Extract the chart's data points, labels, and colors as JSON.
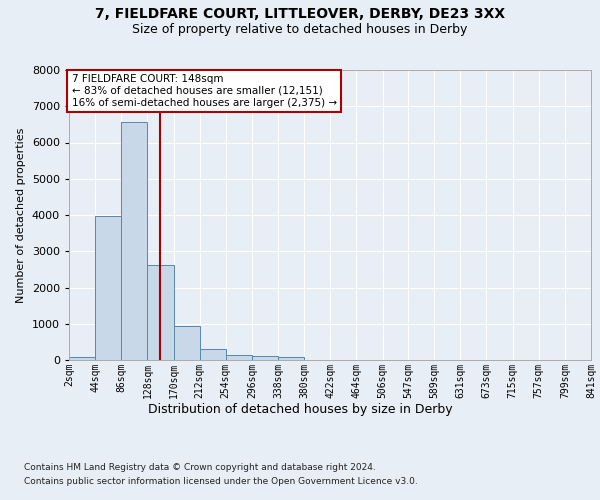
{
  "title_line1": "7, FIELDFARE COURT, LITTLEOVER, DERBY, DE23 3XX",
  "title_line2": "Size of property relative to detached houses in Derby",
  "xlabel": "Distribution of detached houses by size in Derby",
  "ylabel": "Number of detached properties",
  "bar_edges": [
    2,
    44,
    86,
    128,
    170,
    212,
    254,
    296,
    338,
    380,
    422,
    464,
    506,
    547,
    589,
    631,
    673,
    715,
    757,
    799,
    841
  ],
  "bar_heights": [
    75,
    3970,
    6560,
    2620,
    950,
    310,
    130,
    110,
    90,
    0,
    0,
    0,
    0,
    0,
    0,
    0,
    0,
    0,
    0,
    0
  ],
  "bar_color": "#c8d8e8",
  "bar_edgecolor": "#5588aa",
  "vline_x": 148,
  "vline_color": "#aa0000",
  "ylim": [
    0,
    8000
  ],
  "annotation_text": "7 FIELDFARE COURT: 148sqm\n← 83% of detached houses are smaller (12,151)\n16% of semi-detached houses are larger (2,375) →",
  "annotation_box_edgecolor": "#aa0000",
  "annotation_box_facecolor": "#ffffff",
  "footnote1": "Contains HM Land Registry data © Crown copyright and database right 2024.",
  "footnote2": "Contains public sector information licensed under the Open Government Licence v3.0.",
  "tick_labels": [
    "2sqm",
    "44sqm",
    "86sqm",
    "128sqm",
    "170sqm",
    "212sqm",
    "254sqm",
    "296sqm",
    "338sqm",
    "380sqm",
    "422sqm",
    "464sqm",
    "506sqm",
    "547sqm",
    "589sqm",
    "631sqm",
    "673sqm",
    "715sqm",
    "757sqm",
    "799sqm",
    "841sqm"
  ],
  "bg_color": "#e8eef5",
  "axes_bg_color": "#e8eef5",
  "title1_fontsize": 10,
  "title2_fontsize": 9,
  "ylabel_fontsize": 8,
  "xlabel_fontsize": 9,
  "tick_fontsize": 7,
  "ytick_fontsize": 8,
  "annot_fontsize": 7.5,
  "footnote_fontsize": 6.5
}
